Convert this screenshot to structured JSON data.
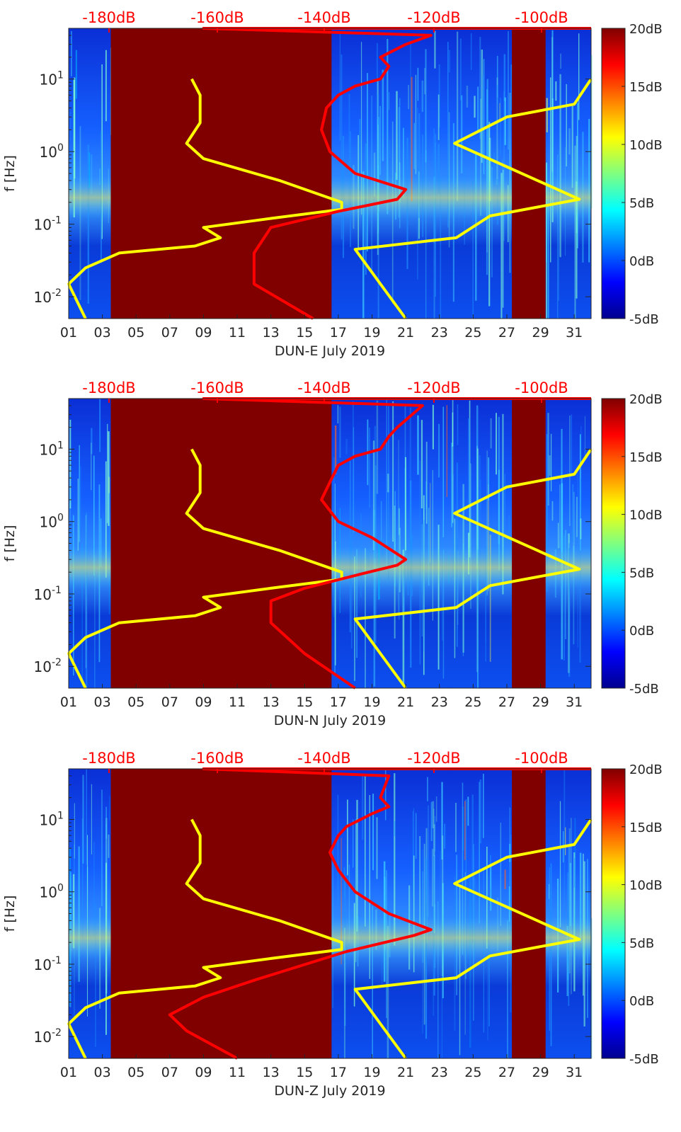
{
  "chart_data": [
    {
      "type": "heatmap",
      "xlabel": "DUN-E July 2019",
      "ylabel": "f [Hz]",
      "x_tick_labels": [
        "01",
        "03",
        "05",
        "07",
        "09",
        "11",
        "13",
        "15",
        "17",
        "19",
        "21",
        "23",
        "25",
        "27",
        "29",
        "31"
      ],
      "x_ticks_day": [
        1,
        3,
        5,
        7,
        9,
        11,
        13,
        15,
        17,
        19,
        21,
        23,
        25,
        27,
        29,
        31
      ],
      "xlim_day": [
        1,
        32
      ],
      "y_scale": "log",
      "ylim_hz": [
        0.005,
        50
      ],
      "y_tick_labels": [
        "10^-2",
        "10^-1",
        "10^0",
        "10^1"
      ],
      "y_ticks_hz": [
        0.01,
        0.1,
        1,
        10
      ],
      "top_axis": {
        "labels": [
          "-180dB",
          "-160dB",
          "-140dB",
          "-120dB",
          "-100dB"
        ],
        "db_at": [
          -180,
          -160,
          -140,
          -120,
          -100
        ],
        "day_at": [
          3.2,
          12.8,
          19.4,
          32.0,
          39.0
        ],
        "color": "#ff0000"
      },
      "colorbar": {
        "labels": [
          "20dB",
          "15dB",
          "10dB",
          "5dB",
          "0dB",
          "-5dB"
        ],
        "values": [
          20,
          15,
          10,
          5,
          0,
          -5
        ],
        "range": [
          -5,
          20
        ],
        "colormap": "jet"
      },
      "data_gaps_day": [
        [
          3.5,
          16.6
        ],
        [
          27.3,
          29.3
        ]
      ],
      "series": [
        {
          "color": "#ffff00",
          "x_day": [
            7.3,
            7.8,
            7.8,
            7.0,
            8.0,
            12.5,
            16.2,
            16.2,
            12.0,
            8.0,
            9.0,
            7.5,
            3.0,
            1.0,
            0.0,
            1.0
          ],
          "y_hz": [
            10,
            6,
            2.5,
            1.3,
            0.8,
            0.4,
            0.2,
            0.16,
            0.12,
            0.09,
            0.065,
            0.05,
            0.04,
            0.025,
            0.015,
            0.005
          ]
        },
        {
          "color": "#ffff00",
          "x_day": [
            32,
            30.0,
            26.0,
            22.9,
            30.3,
            25.0,
            23.0,
            17.0,
            20.0
          ],
          "y_hz": [
            10,
            4.5,
            3.0,
            1.3,
            0.22,
            0.13,
            0.065,
            0.045,
            0.005
          ]
        },
        {
          "color": "#ff0000",
          "x_day": [
            14.5,
            11.0,
            11.0,
            12.0,
            16.0,
            19.5,
            20.0,
            17.0,
            15.5,
            15.0,
            15.3,
            16.0,
            17.0,
            18.5,
            19.0,
            18.5,
            20.0,
            21.5,
            8.0,
            32
          ],
          "y_hz": [
            0.005,
            0.015,
            0.04,
            0.09,
            0.15,
            0.22,
            0.3,
            0.5,
            1.0,
            2.0,
            4.0,
            6.0,
            8.0,
            10.0,
            15.0,
            20.0,
            30.0,
            40.0,
            50.0,
            50.0
          ]
        }
      ]
    },
    {
      "type": "heatmap",
      "xlabel": "DUN-N July 2019",
      "ylabel": "f [Hz]",
      "x_tick_labels": [
        "01",
        "03",
        "05",
        "07",
        "09",
        "11",
        "13",
        "15",
        "17",
        "19",
        "21",
        "23",
        "25",
        "27",
        "29",
        "31"
      ],
      "x_ticks_day": [
        1,
        3,
        5,
        7,
        9,
        11,
        13,
        15,
        17,
        19,
        21,
        23,
        25,
        27,
        29,
        31
      ],
      "xlim_day": [
        1,
        32
      ],
      "y_scale": "log",
      "ylim_hz": [
        0.005,
        50
      ],
      "y_tick_labels": [
        "10^-2",
        "10^-1",
        "10^0",
        "10^1"
      ],
      "y_ticks_hz": [
        0.01,
        0.1,
        1,
        10
      ],
      "top_axis": {
        "labels": [
          "-180dB",
          "-160dB",
          "-140dB",
          "-120dB",
          "-100dB"
        ],
        "db_at": [
          -180,
          -160,
          -140,
          -120,
          -100
        ],
        "day_at": [
          3.2,
          12.8,
          19.4,
          32.0,
          39.0
        ],
        "color": "#ff0000"
      },
      "colorbar": {
        "labels": [
          "20dB",
          "15dB",
          "10dB",
          "5dB",
          "0dB",
          "-5dB"
        ],
        "values": [
          20,
          15,
          10,
          5,
          0,
          -5
        ],
        "range": [
          -5,
          20
        ],
        "colormap": "jet"
      },
      "data_gaps_day": [
        [
          3.5,
          16.6
        ],
        [
          27.3,
          29.3
        ]
      ],
      "series": [
        {
          "color": "#ffff00",
          "x_day": [
            7.3,
            7.8,
            7.8,
            7.0,
            8.0,
            12.5,
            16.2,
            16.2,
            12.0,
            8.0,
            9.0,
            7.5,
            3.0,
            1.0,
            0.0,
            1.0
          ],
          "y_hz": [
            10,
            6,
            2.5,
            1.3,
            0.8,
            0.4,
            0.2,
            0.16,
            0.12,
            0.09,
            0.065,
            0.05,
            0.04,
            0.025,
            0.015,
            0.005
          ]
        },
        {
          "color": "#ffff00",
          "x_day": [
            32,
            30.0,
            26.0,
            22.9,
            30.3,
            25.0,
            23.0,
            17.0,
            20.0
          ],
          "y_hz": [
            10,
            4.5,
            3.0,
            1.3,
            0.22,
            0.13,
            0.065,
            0.045,
            0.005
          ]
        },
        {
          "color": "#ff0000",
          "x_day": [
            17.0,
            14.0,
            12.0,
            12.0,
            14.0,
            17.0,
            19.5,
            20.0,
            18.0,
            16.0,
            15.0,
            15.5,
            16.0,
            17.0,
            18.5,
            19.0,
            19.5,
            21.0,
            8.0,
            32
          ],
          "y_hz": [
            0.005,
            0.015,
            0.04,
            0.08,
            0.12,
            0.18,
            0.25,
            0.3,
            0.6,
            1.0,
            2.0,
            3.5,
            6.0,
            8.0,
            10.0,
            15.0,
            20.0,
            40.0,
            50.0,
            50.0
          ]
        }
      ]
    },
    {
      "type": "heatmap",
      "xlabel": "DUN-Z July 2019",
      "ylabel": "f [Hz]",
      "x_tick_labels": [
        "01",
        "03",
        "05",
        "07",
        "09",
        "11",
        "13",
        "15",
        "17",
        "19",
        "21",
        "23",
        "25",
        "27",
        "29",
        "31"
      ],
      "x_ticks_day": [
        1,
        3,
        5,
        7,
        9,
        11,
        13,
        15,
        17,
        19,
        21,
        23,
        25,
        27,
        29,
        31
      ],
      "xlim_day": [
        1,
        32
      ],
      "y_scale": "log",
      "ylim_hz": [
        0.005,
        50
      ],
      "y_tick_labels": [
        "10^-2",
        "10^-1",
        "10^0",
        "10^1"
      ],
      "y_ticks_hz": [
        0.01,
        0.1,
        1,
        10
      ],
      "top_axis": {
        "labels": [
          "-180dB",
          "-160dB",
          "-140dB",
          "-120dB",
          "-100dB"
        ],
        "db_at": [
          -180,
          -160,
          -140,
          -120,
          -100
        ],
        "day_at": [
          3.2,
          12.8,
          19.4,
          32.0,
          39.0
        ],
        "color": "#ff0000"
      },
      "colorbar": {
        "labels": [
          "20dB",
          "15dB",
          "10dB",
          "5dB",
          "0dB",
          "-5dB"
        ],
        "values": [
          20,
          15,
          10,
          5,
          0,
          -5
        ],
        "range": [
          -5,
          20
        ],
        "colormap": "jet"
      },
      "data_gaps_day": [
        [
          3.5,
          16.6
        ],
        [
          27.3,
          29.3
        ]
      ],
      "series": [
        {
          "color": "#ffff00",
          "x_day": [
            7.3,
            7.8,
            7.8,
            7.0,
            8.0,
            12.5,
            16.2,
            16.2,
            12.0,
            8.0,
            9.0,
            7.5,
            3.0,
            1.0,
            0.0,
            1.0
          ],
          "y_hz": [
            10,
            6,
            2.5,
            1.3,
            0.8,
            0.4,
            0.2,
            0.16,
            0.12,
            0.09,
            0.065,
            0.05,
            0.04,
            0.025,
            0.015,
            0.005
          ]
        },
        {
          "color": "#ffff00",
          "x_day": [
            32,
            30.0,
            26.0,
            22.9,
            30.3,
            25.0,
            23.0,
            17.0,
            20.0
          ],
          "y_hz": [
            10,
            4.5,
            3.0,
            1.3,
            0.22,
            0.13,
            0.065,
            0.045,
            0.005
          ]
        },
        {
          "color": "#ff0000",
          "x_day": [
            10.0,
            7.0,
            6.0,
            8.0,
            11.0,
            16.5,
            20.5,
            21.5,
            19.0,
            17.0,
            16.0,
            15.5,
            16.0,
            16.5,
            18.0,
            19.0,
            18.5,
            19.0,
            8.0,
            32
          ],
          "y_hz": [
            0.005,
            0.012,
            0.02,
            0.035,
            0.06,
            0.15,
            0.25,
            0.3,
            0.5,
            1.0,
            2.0,
            3.5,
            6.0,
            8.0,
            12.0,
            15.0,
            20.0,
            40.0,
            50.0,
            50.0
          ]
        }
      ]
    }
  ]
}
